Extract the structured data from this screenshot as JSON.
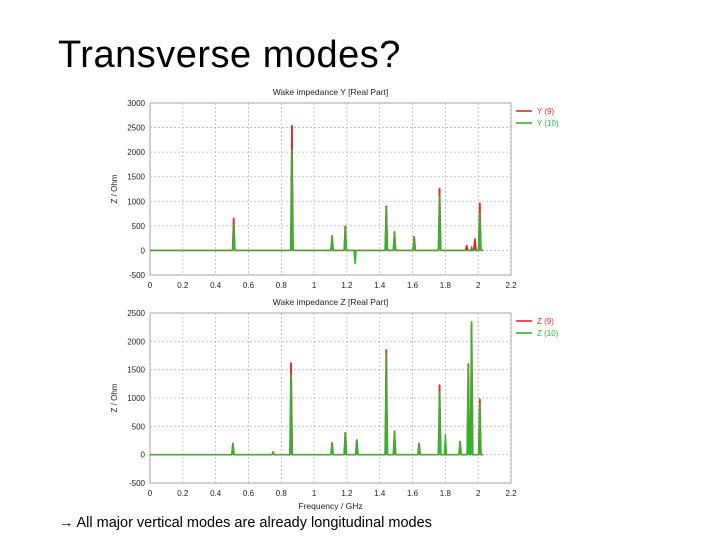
{
  "slide": {
    "title": "Transverse modes?",
    "caption_arrow": "→",
    "caption": "All major vertical modes are already longitudinal modes"
  },
  "chart_data": [
    {
      "type": "line",
      "title": "Wake impedance Y [Real Part]",
      "xlabel": "",
      "ylabel": "Z / Ohm",
      "xlim": [
        0,
        2.2
      ],
      "ylim": [
        -500,
        3000
      ],
      "xticks": [
        0,
        0.2,
        0.4,
        0.6,
        0.8,
        1,
        1.2,
        1.4,
        1.6,
        1.8,
        2,
        2.2
      ],
      "yticks": [
        -500,
        0,
        500,
        1000,
        1500,
        2000,
        2500,
        3000
      ],
      "grid": true,
      "legend_position": "right",
      "series": [
        {
          "name": "Y (9)",
          "color": "#e8262a",
          "peaks": [
            [
              0.51,
              650
            ],
            [
              0.865,
              2540
            ],
            [
              1.11,
              300
            ],
            [
              1.19,
              490
            ],
            [
              1.44,
              900
            ],
            [
              1.49,
              380
            ],
            [
              1.61,
              280
            ],
            [
              1.765,
              1260
            ],
            [
              1.93,
              100
            ],
            [
              1.98,
              230
            ],
            [
              2.01,
              960
            ]
          ]
        },
        {
          "name": "Y (10)",
          "color": "#2db82d",
          "peaks": [
            [
              0.51,
              520
            ],
            [
              0.865,
              2050
            ],
            [
              1.11,
              300
            ],
            [
              1.19,
              450
            ],
            [
              1.25,
              -270
            ],
            [
              1.44,
              860
            ],
            [
              1.49,
              360
            ],
            [
              1.61,
              260
            ],
            [
              1.765,
              1100
            ],
            [
              1.96,
              80
            ],
            [
              2.01,
              760
            ]
          ]
        }
      ]
    },
    {
      "type": "line",
      "title": "Wake impedance Z [Real Part]",
      "xlabel": "Frequency / GHz",
      "ylabel": "Z / Ohm",
      "xlim": [
        0,
        2.2
      ],
      "ylim": [
        -500,
        2500
      ],
      "xticks": [
        0,
        0.2,
        0.4,
        0.6,
        0.8,
        1,
        1.2,
        1.4,
        1.6,
        1.8,
        2,
        2.2
      ],
      "yticks": [
        -500,
        0,
        500,
        1000,
        1500,
        2000,
        2500
      ],
      "grid": true,
      "legend_position": "right",
      "series": [
        {
          "name": "Z (9)",
          "color": "#e8262a",
          "peaks": [
            [
              0.505,
              200
            ],
            [
              0.75,
              50
            ],
            [
              0.86,
              1620
            ],
            [
              1.11,
              210
            ],
            [
              1.19,
              390
            ],
            [
              1.26,
              260
            ],
            [
              1.44,
              1850
            ],
            [
              1.49,
              420
            ],
            [
              1.64,
              200
            ],
            [
              1.765,
              1230
            ],
            [
              1.89,
              230
            ],
            [
              1.94,
              1600
            ],
            [
              1.96,
              2320
            ],
            [
              2.01,
              980
            ]
          ]
        },
        {
          "name": "Z (10)",
          "color": "#2db82d",
          "peaks": [
            [
              0.505,
              200
            ],
            [
              0.75,
              50
            ],
            [
              0.86,
              1400
            ],
            [
              1.11,
              200
            ],
            [
              1.19,
              380
            ],
            [
              1.26,
              250
            ],
            [
              1.44,
              1780
            ],
            [
              1.49,
              410
            ],
            [
              1.64,
              190
            ],
            [
              1.765,
              1100
            ],
            [
              1.8,
              350
            ],
            [
              1.89,
              220
            ],
            [
              1.94,
              1560
            ],
            [
              1.96,
              2350
            ],
            [
              2.01,
              900
            ]
          ]
        }
      ]
    }
  ]
}
